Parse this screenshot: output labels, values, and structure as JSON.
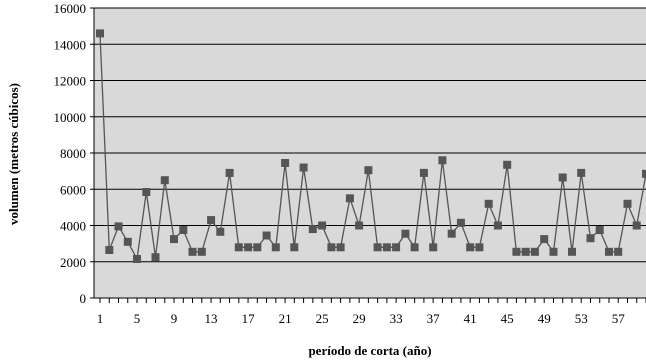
{
  "chart_data": {
    "type": "line",
    "title": "",
    "xlabel": "período de corta (año)",
    "ylabel": "volumen (metros cúbicos)",
    "ylim": [
      0,
      16000
    ],
    "yticks": [
      0,
      2000,
      4000,
      6000,
      8000,
      10000,
      12000,
      14000,
      16000
    ],
    "xlim": [
      1,
      60
    ],
    "xticks": [
      1,
      5,
      9,
      13,
      17,
      21,
      25,
      29,
      33,
      37,
      41,
      45,
      49,
      53,
      57
    ],
    "grid": "horizontal",
    "legend": "none",
    "colors": {
      "line": "#555555",
      "marker": "#555555",
      "plot_background": "#d9d9d9",
      "gridline": "#000000"
    },
    "series": [
      {
        "x": [
          1,
          2,
          3,
          4,
          5,
          6,
          7,
          8,
          9,
          10,
          11,
          12,
          13,
          14,
          15,
          16,
          17,
          18,
          19,
          20,
          21,
          22,
          23,
          24,
          25,
          26,
          27,
          28,
          29,
          30,
          31,
          32,
          33,
          34,
          35,
          36,
          37,
          38,
          39,
          40,
          41,
          42,
          43,
          44,
          45,
          46,
          47,
          48,
          49,
          50,
          51,
          52,
          53,
          54,
          55,
          56,
          57,
          58,
          59,
          60
        ],
        "values": [
          14600,
          2650,
          3950,
          3100,
          2150,
          5850,
          2250,
          6500,
          3250,
          3750,
          2550,
          2550,
          4300,
          3650,
          6900,
          2800,
          2800,
          2800,
          3450,
          2800,
          7450,
          2800,
          7200,
          3800,
          4000,
          2800,
          2800,
          5500,
          4000,
          7050,
          2800,
          2800,
          2800,
          3550,
          2800,
          6900,
          2800,
          7600,
          3550,
          4150,
          2800,
          2800,
          5200,
          4000,
          7350,
          2550,
          2550,
          2550,
          3250,
          2550,
          6650,
          2550,
          6900,
          3300,
          3750,
          2550,
          2550,
          5200,
          4000,
          6850
        ]
      }
    ]
  }
}
